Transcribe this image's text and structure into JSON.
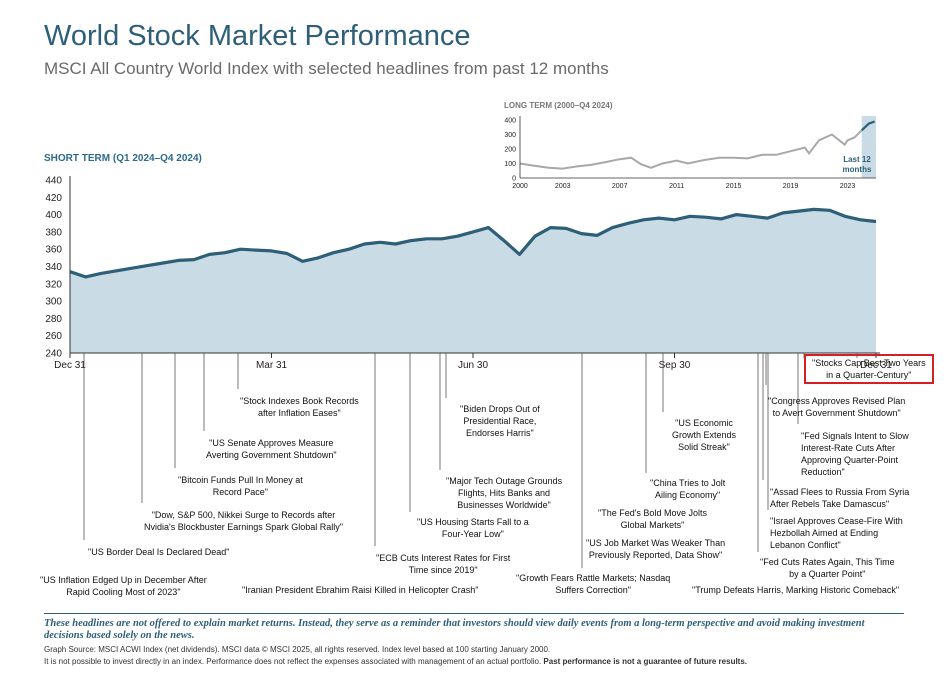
{
  "title": "World Stock Market Performance",
  "subtitle": "MSCI All Country World Index with selected headlines from past 12 months",
  "colors": {
    "title": "#2e5f78",
    "line": "#2e5f78",
    "fill": "#c9dbe4",
    "long_line": "#a8a8a8",
    "highlight_box": "#d41f26"
  },
  "chart_data": [
    {
      "type": "area",
      "title": "SHORT TERM (Q1 2024–Q4 2024)",
      "x_tick_labels": [
        "Dec 31",
        "Mar 31",
        "Jun 30",
        "Sep 30",
        "Dec 31"
      ],
      "ylim": [
        240,
        440
      ],
      "y_ticks": [
        240,
        260,
        280,
        300,
        320,
        340,
        360,
        380,
        400,
        420,
        440
      ],
      "x_range": [
        0,
        52
      ],
      "x_ticks": [
        0,
        13,
        26,
        39,
        52
      ],
      "series": [
        {
          "name": "MSCI ACWI",
          "x": [
            0,
            1,
            2,
            3,
            4,
            5,
            6,
            7,
            8,
            9,
            10,
            11,
            12,
            13,
            14,
            15,
            16,
            17,
            18,
            19,
            20,
            21,
            22,
            23,
            24,
            25,
            26,
            27,
            28,
            29,
            30,
            31,
            32,
            33,
            34,
            35,
            36,
            37,
            38,
            39,
            40,
            41,
            42,
            43,
            44,
            45,
            46,
            47,
            48,
            49,
            50,
            51,
            52
          ],
          "values": [
            334,
            328,
            332,
            335,
            338,
            341,
            344,
            347,
            348,
            354,
            356,
            360,
            359,
            358,
            355,
            346,
            350,
            356,
            360,
            366,
            368,
            366,
            370,
            372,
            372,
            375,
            380,
            385,
            370,
            354,
            375,
            385,
            384,
            378,
            376,
            385,
            390,
            394,
            396,
            394,
            398,
            397,
            395,
            400,
            398,
            396,
            402,
            404,
            406,
            405,
            398,
            394,
            392
          ]
        }
      ]
    },
    {
      "type": "line",
      "title": "LONG TERM (2000–Q4 2024)",
      "x_tick_labels": [
        "2000",
        "2003",
        "2007",
        "2011",
        "2015",
        "2019",
        "2023"
      ],
      "y_ticks": [
        0,
        100,
        200,
        300,
        400
      ],
      "ylim": [
        0,
        400
      ],
      "xlim": [
        2000,
        2025
      ],
      "highlight_label": "Last 12 months",
      "series": [
        {
          "name": "MSCI ACWI",
          "x": [
            2000,
            2001,
            2002,
            2003,
            2004,
            2005,
            2006,
            2007,
            2007.8,
            2008.5,
            2009.2,
            2010,
            2011,
            2011.8,
            2012,
            2013,
            2014,
            2015,
            2016,
            2017,
            2018,
            2019,
            2020,
            2020.3,
            2021,
            2021.9,
            2022.8,
            2023,
            2023.5,
            2024,
            2024.5,
            2024.9
          ],
          "values": [
            100,
            85,
            70,
            65,
            80,
            90,
            110,
            130,
            140,
            95,
            70,
            100,
            120,
            100,
            105,
            125,
            140,
            140,
            135,
            160,
            160,
            185,
            210,
            170,
            260,
            300,
            230,
            260,
            280,
            330,
            375,
            390
          ]
        }
      ]
    }
  ],
  "headlines": [
    {
      "id": "us-inflation",
      "text": "\"US Inflation Edged Up in December After Rapid Cooling Most of 2023\""
    },
    {
      "id": "border-deal",
      "text": "\"US Border Deal Is Declared Dead\""
    },
    {
      "id": "nvidia-rally",
      "text": "\"Dow, S&P 500, Nikkei Surge to Records after Nvidia's Blockbuster Earnings Spark Global Rally\""
    },
    {
      "id": "bitcoin",
      "text": "\"Bitcoin Funds Pull In Money at Record Pace\""
    },
    {
      "id": "senate-shutdown",
      "text": "\"US Senate Approves Measure Averting Government Shutdown\""
    },
    {
      "id": "indexes-records",
      "text": "\"Stock Indexes Book Records after Inflation Eases\""
    },
    {
      "id": "raisi",
      "text": "\"Iranian President Ebrahim Raisi Killed in Helicopter Crash\""
    },
    {
      "id": "ecb-cuts",
      "text": "\"ECB Cuts Interest Rates for First Time since 2019\""
    },
    {
      "id": "housing-starts",
      "text": "\"US Housing Starts Fall to a Four-Year Low\""
    },
    {
      "id": "tech-outage",
      "text": "\"Major Tech Outage Grounds Flights, Hits Banks and Businesses Worldwide\""
    },
    {
      "id": "biden",
      "text": "\"Biden Drops Out of Presidential Race, Endorses Harris\""
    },
    {
      "id": "growth-fears",
      "text": "\"Growth Fears Rattle Markets; Nasdaq Suffers Correction\""
    },
    {
      "id": "job-market",
      "text": "\"US Job Market Was Weaker Than Previously Reported, Data Show\""
    },
    {
      "id": "fed-bold",
      "text": "\"The Fed's Bold Move Jolts Global Markets\""
    },
    {
      "id": "china-jolt",
      "text": "\"China Tries to Jolt Ailing Economy\""
    },
    {
      "id": "us-growth",
      "text": "\"US Economic Growth Extends Solid Streak\""
    },
    {
      "id": "trump",
      "text": "\"Trump Defeats Harris, Marking Historic Comeback\""
    },
    {
      "id": "fed-cuts-again",
      "text": "\"Fed Cuts Rates Again, This Time by a Quarter Point\""
    },
    {
      "id": "israel-ceasefire",
      "text": "\"Israel Approves Cease-Fire With Hezbollah Aimed at Ending Lebanon Conflict\""
    },
    {
      "id": "assad",
      "text": "\"Assad Flees to Russia From Syria After Rebels Take Damascus\""
    },
    {
      "id": "fed-signals",
      "text": "\"Fed Signals Intent to Slow Interest-Rate Cuts After Approving Quarter-Point Reduction\""
    },
    {
      "id": "congress-plan",
      "text": "\"Congress Approves Revised Plan to Avert Government Shutdown\""
    },
    {
      "id": "best-two-years",
      "text": "\"Stocks Cap Best Two Years in a Quarter-Century\""
    }
  ],
  "footer": {
    "disclaimer": "These headlines are not offered to explain market returns. Instead, they serve as a reminder that investors should view daily events from a long-term perspective and avoid making investment decisions based solely on the news.",
    "source": "Graph Source: MSCI ACWI Index (net dividends). MSCI data © MSCI 2025, all rights reserved. Index level based at 100 starting January 2000.",
    "note": "It is not possible to invest directly in an index. Performance does not reflect the expenses associated with management of an actual portfolio.",
    "note_bold": "Past performance is not a guarantee of future results."
  }
}
